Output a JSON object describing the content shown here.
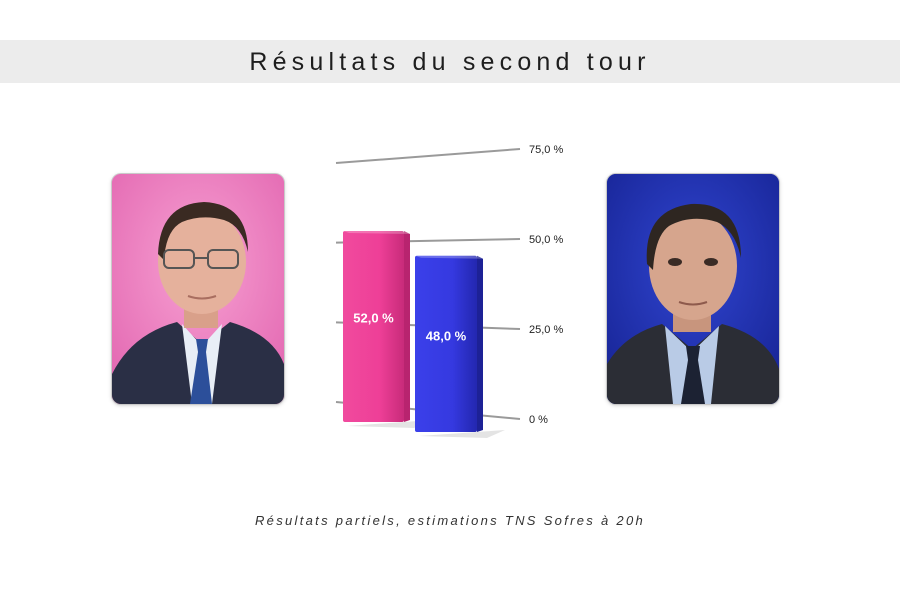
{
  "header": {
    "title": "Résultats du second tour"
  },
  "footer": {
    "caption": "Résultats partiels, estimations TNS Sofres à 20h"
  },
  "candidates": [
    {
      "photo_icon": "candidate-portrait-left",
      "background_color": "#e865b3"
    },
    {
      "photo_icon": "candidate-portrait-right",
      "background_color": "#2233b8"
    }
  ],
  "chart_data": {
    "type": "bar",
    "title": "Résultats du second tour",
    "categories": [
      "",
      ""
    ],
    "values": [
      52.0,
      48.0
    ],
    "value_labels": [
      "52,0 %",
      "48,0 %"
    ],
    "colors": [
      "#ee3f97",
      "#3539e0"
    ],
    "y_ticks": [
      {
        "value": 0,
        "label": "0 %"
      },
      {
        "value": 25,
        "label": "25,0 %"
      },
      {
        "value": 50,
        "label": "50,0 %"
      },
      {
        "value": 75,
        "label": "75,0 %"
      }
    ],
    "ylim": [
      0,
      75
    ],
    "grid": true,
    "legend": "none"
  }
}
